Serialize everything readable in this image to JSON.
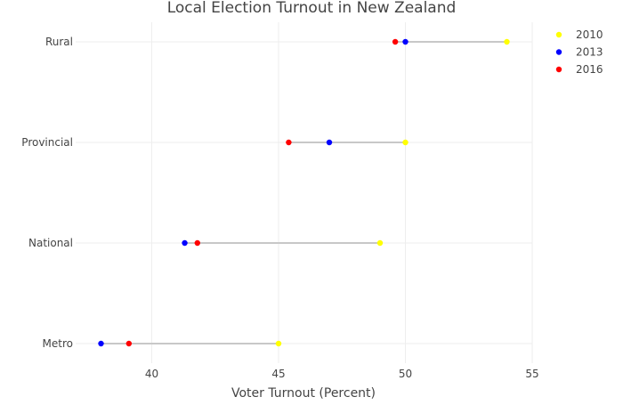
{
  "chart_data": {
    "type": "scatter",
    "title": "Local Election Turnout in New Zealand",
    "xlabel": "Voter Turnout (Percent)",
    "ylabel": "",
    "xlim": [
      37,
      55
    ],
    "x_ticks": [
      40,
      45,
      50,
      55
    ],
    "categories": [
      "Rural",
      "Provincial",
      "National",
      "Metro"
    ],
    "grid": true,
    "legend_placement": "top-right",
    "connector_color": "#c8c8c8",
    "series": [
      {
        "name": "2010",
        "color": "#ffff00",
        "values": [
          54,
          50,
          49,
          45
        ]
      },
      {
        "name": "2013",
        "color": "#0000ff",
        "values": [
          50,
          47,
          41.3,
          38
        ]
      },
      {
        "name": "2016",
        "color": "#ff0000",
        "values": [
          49.6,
          45.4,
          41.8,
          39.1
        ]
      }
    ]
  }
}
